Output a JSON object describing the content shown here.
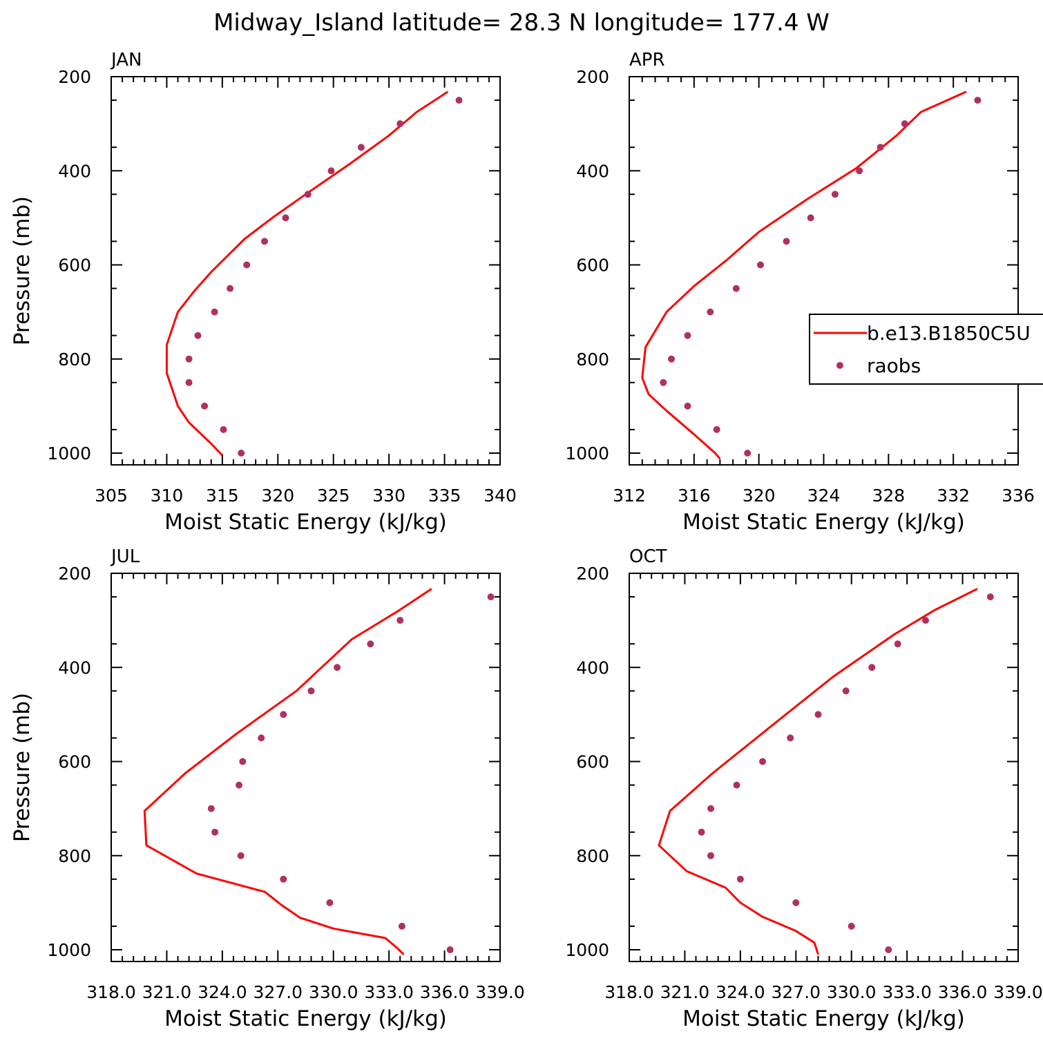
{
  "figure": {
    "title": "Midway_Island  latitude= 28.3 N longitude= 177.4 W"
  },
  "legend": {
    "model_label": "b.e13.B1850C5U",
    "obs_label": "raobs"
  },
  "colors": {
    "model_line": "#ff0000",
    "obs_marker": "#b03060",
    "axes": "#000000",
    "background": "#ffffff"
  },
  "chart_data": [
    {
      "type": "line",
      "panel": "JAN",
      "xlabel": "Moist Static Energy (kJ/kg)",
      "ylabel": "Pressure (mb)",
      "xlim": [
        305,
        340
      ],
      "ylim": [
        1025,
        200
      ],
      "x_ticks": [
        305,
        310,
        315,
        320,
        325,
        330,
        335,
        340
      ],
      "x_tick_labels": [
        "305",
        "310",
        "315",
        "320",
        "325",
        "330",
        "335",
        "340"
      ],
      "y_ticks": [
        200,
        400,
        600,
        800,
        1000
      ],
      "y_tick_labels": [
        "200",
        "400",
        "600",
        "800",
        "1000"
      ],
      "series": [
        {
          "name": "b.e13.B1850C5U",
          "kind": "line",
          "x": [
            335.3,
            332.5,
            330.0,
            326.5,
            322.5,
            319.5,
            317.0,
            314.0,
            312.5,
            311.0,
            310.0,
            310.0,
            310.5,
            311.0,
            312.0,
            314.0,
            315.0
          ],
          "y": [
            232,
            275,
            325,
            385,
            450,
            500,
            545,
            615,
            655,
            700,
            770,
            830,
            865,
            900,
            935,
            980,
            1005
          ]
        },
        {
          "name": "raobs",
          "kind": "scatter",
          "x": [
            336.3,
            331.0,
            327.5,
            324.8,
            322.7,
            320.7,
            318.8,
            317.2,
            315.7,
            314.3,
            312.8,
            312.0,
            312.0,
            313.4,
            315.1,
            316.7
          ],
          "y": [
            250,
            300,
            350,
            400,
            450,
            500,
            550,
            600,
            650,
            700,
            750,
            800,
            850,
            900,
            950,
            1000
          ]
        }
      ]
    },
    {
      "type": "line",
      "panel": "APR",
      "xlabel": "Moist Static Energy (kJ/kg)",
      "ylabel": "",
      "xlim": [
        312,
        336
      ],
      "ylim": [
        1025,
        200
      ],
      "x_ticks": [
        312,
        316,
        320,
        324,
        328,
        332,
        336
      ],
      "x_tick_labels": [
        "312",
        "316",
        "320",
        "324",
        "328",
        "332",
        "336"
      ],
      "y_ticks": [
        200,
        400,
        600,
        800,
        1000
      ],
      "y_tick_labels": [
        "200",
        "400",
        "600",
        "800",
        "1000"
      ],
      "series": [
        {
          "name": "b.e13.B1850C5U",
          "kind": "line",
          "x": [
            332.8,
            330.0,
            328.5,
            326.0,
            323.0,
            320.0,
            318.0,
            316.0,
            314.3,
            313.0,
            312.8,
            313.2,
            314.3,
            316.0,
            317.3,
            317.6
          ],
          "y": [
            232,
            275,
            325,
            395,
            460,
            530,
            590,
            645,
            700,
            775,
            840,
            875,
            910,
            960,
            1000,
            1012
          ]
        },
        {
          "name": "raobs",
          "kind": "scatter",
          "x": [
            333.5,
            329.0,
            327.5,
            326.2,
            324.7,
            323.2,
            321.7,
            320.1,
            318.6,
            317.0,
            315.6,
            314.6,
            314.1,
            315.6,
            317.4,
            319.3
          ],
          "y": [
            250,
            300,
            350,
            400,
            450,
            500,
            550,
            600,
            650,
            700,
            750,
            800,
            850,
            900,
            950,
            1000
          ]
        }
      ]
    },
    {
      "type": "line",
      "panel": "JUL",
      "xlabel": "Moist Static Energy (kJ/kg)",
      "ylabel": "Pressure (mb)",
      "xlim": [
        318.0,
        339.0
      ],
      "ylim": [
        1025,
        200
      ],
      "x_ticks": [
        318,
        321,
        324,
        327,
        330,
        333,
        336,
        339
      ],
      "x_tick_labels": [
        "318.0",
        "321.0",
        "324.0",
        "327.0",
        "330.0",
        "333.0",
        "336.0",
        "339.0"
      ],
      "y_ticks": [
        200,
        400,
        600,
        800,
        1000
      ],
      "y_tick_labels": [
        "200",
        "400",
        "600",
        "800",
        "1000"
      ],
      "series": [
        {
          "name": "b.e13.B1850C5U",
          "kind": "line",
          "x": [
            335.3,
            333.5,
            331.0,
            328.0,
            324.8,
            322.0,
            319.8,
            319.9,
            322.6,
            326.3,
            327.2,
            328.2,
            330.0,
            332.8,
            333.4,
            333.8
          ],
          "y": [
            233,
            280,
            340,
            450,
            540,
            625,
            705,
            778,
            838,
            877,
            905,
            932,
            955,
            975,
            995,
            1010
          ]
        },
        {
          "name": "raobs",
          "kind": "scatter",
          "x": [
            338.5,
            333.6,
            332.0,
            330.2,
            328.8,
            327.3,
            326.1,
            325.1,
            324.9,
            323.4,
            323.6,
            325.0,
            327.3,
            329.8,
            333.7,
            336.3
          ],
          "y": [
            250,
            300,
            350,
            400,
            450,
            500,
            550,
            600,
            650,
            700,
            750,
            800,
            850,
            900,
            950,
            1000
          ]
        }
      ]
    },
    {
      "type": "line",
      "panel": "OCT",
      "xlabel": "Moist Static Energy (kJ/kg)",
      "ylabel": "",
      "xlim": [
        318.0,
        339.0
      ],
      "ylim": [
        1025,
        200
      ],
      "x_ticks": [
        318,
        321,
        324,
        327,
        330,
        333,
        336,
        339
      ],
      "x_tick_labels": [
        "318.0",
        "321.0",
        "324.0",
        "327.0",
        "330.0",
        "333.0",
        "336.0",
        "339.0"
      ],
      "y_ticks": [
        200,
        400,
        600,
        800,
        1000
      ],
      "y_tick_labels": [
        "200",
        "400",
        "600",
        "800",
        "1000"
      ],
      "series": [
        {
          "name": "b.e13.B1850C5U",
          "kind": "line",
          "x": [
            336.8,
            334.5,
            332.3,
            329.0,
            325.5,
            322.5,
            320.2,
            319.6,
            321.1,
            323.2,
            324.0,
            325.2,
            327.0,
            328.0,
            328.2
          ],
          "y": [
            233,
            278,
            330,
            420,
            530,
            625,
            705,
            778,
            833,
            868,
            900,
            930,
            960,
            985,
            1010
          ]
        },
        {
          "name": "raobs",
          "kind": "scatter",
          "x": [
            337.5,
            334.0,
            332.5,
            331.1,
            329.7,
            328.2,
            326.7,
            325.2,
            323.8,
            322.4,
            321.9,
            322.4,
            324.0,
            327.0,
            330.0,
            332.0
          ],
          "y": [
            250,
            300,
            350,
            400,
            450,
            500,
            550,
            600,
            650,
            700,
            750,
            800,
            850,
            900,
            950,
            1000
          ]
        }
      ]
    }
  ]
}
